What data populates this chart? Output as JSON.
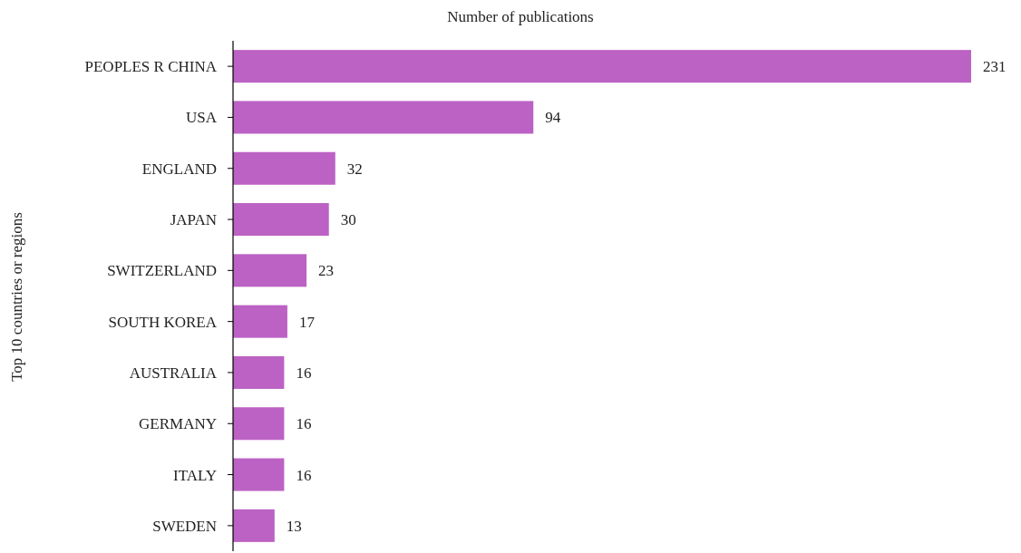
{
  "chart_data": {
    "type": "bar",
    "orientation": "horizontal",
    "xlabel": "Number of publications",
    "ylabel": "Top 10 countries or regions",
    "categories": [
      "PEOPLES R CHINA",
      "USA",
      "ENGLAND",
      "JAPAN",
      "SWITZERLAND",
      "SOUTH KOREA",
      "AUSTRALIA",
      "GERMANY",
      "ITALY",
      "SWEDEN"
    ],
    "values": [
      231,
      94,
      32,
      30,
      23,
      17,
      16,
      16,
      16,
      13
    ],
    "color": "#bb62c4",
    "data_labels": true,
    "tick_labels": "y"
  }
}
